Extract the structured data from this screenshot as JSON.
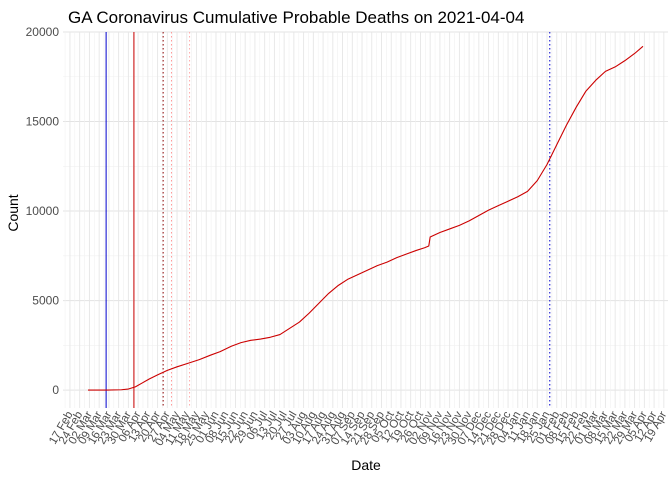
{
  "chart_data": {
    "type": "line",
    "title": "GA Coronavirus Cumulative Probable Deaths on 2021-04-04",
    "xlabel": "Date",
    "ylabel": "Count",
    "xlim": [
      "2020-02-12",
      "2021-04-22"
    ],
    "ylim": [
      -1000,
      20000
    ],
    "grid": true,
    "legend": "none",
    "y_ticks": [
      0,
      5000,
      10000,
      15000,
      20000
    ],
    "x_ticks": [
      "17 Feb",
      "24 Feb",
      "02 Mar",
      "09 Mar",
      "16 Mar",
      "23 Mar",
      "30 Mar",
      "06 Apr",
      "13 Apr",
      "20 Apr",
      "27 Apr",
      "04 May",
      "11 May",
      "18 May",
      "25 May",
      "01 Jun",
      "08 Jun",
      "15 Jun",
      "22 Jun",
      "29 Jun",
      "06 Jul",
      "13 Jul",
      "20 Jul",
      "27 Jul",
      "03 Aug",
      "10 Aug",
      "17 Aug",
      "24 Aug",
      "31 Aug",
      "07 Sep",
      "14 Sep",
      "21 Sep",
      "28 Sep",
      "05 Oct",
      "12 Oct",
      "19 Oct",
      "26 Oct",
      "02 Nov",
      "09 Nov",
      "16 Nov",
      "23 Nov",
      "30 Nov",
      "07 Dec",
      "14 Dec",
      "21 Dec",
      "28 Dec",
      "04 Jan",
      "11 Jan",
      "18 Jan",
      "25 Jan",
      "01 Feb",
      "08 Feb",
      "15 Feb",
      "22 Feb",
      "01 Mar",
      "08 Mar",
      "15 Mar",
      "22 Mar",
      "29 Mar",
      "05 Apr",
      "12 Apr",
      "19 Apr"
    ],
    "x_tick_dates": [
      "2020-02-17",
      "2020-02-24",
      "2020-03-02",
      "2020-03-09",
      "2020-03-16",
      "2020-03-23",
      "2020-03-30",
      "2020-04-06",
      "2020-04-13",
      "2020-04-20",
      "2020-04-27",
      "2020-05-04",
      "2020-05-11",
      "2020-05-18",
      "2020-05-25",
      "2020-06-01",
      "2020-06-08",
      "2020-06-15",
      "2020-06-22",
      "2020-06-29",
      "2020-07-06",
      "2020-07-13",
      "2020-07-20",
      "2020-07-27",
      "2020-08-03",
      "2020-08-10",
      "2020-08-17",
      "2020-08-24",
      "2020-08-31",
      "2020-09-07",
      "2020-09-14",
      "2020-09-21",
      "2020-09-28",
      "2020-10-05",
      "2020-10-12",
      "2020-10-19",
      "2020-10-26",
      "2020-11-02",
      "2020-11-09",
      "2020-11-16",
      "2020-11-23",
      "2020-11-30",
      "2020-12-07",
      "2020-12-14",
      "2020-12-21",
      "2020-12-28",
      "2021-01-04",
      "2021-01-11",
      "2021-01-18",
      "2021-01-25",
      "2021-02-01",
      "2021-02-08",
      "2021-02-15",
      "2021-02-22",
      "2021-03-01",
      "2021-03-08",
      "2021-03-15",
      "2021-03-22",
      "2021-03-29",
      "2021-04-05",
      "2021-04-12",
      "2021-04-19"
    ],
    "series": [
      {
        "color": "#cc0000",
        "points": [
          [
            "2020-03-01",
            0
          ],
          [
            "2020-03-15",
            2
          ],
          [
            "2020-03-25",
            20
          ],
          [
            "2020-03-30",
            60
          ],
          [
            "2020-04-04",
            180
          ],
          [
            "2020-04-09",
            400
          ],
          [
            "2020-04-14",
            620
          ],
          [
            "2020-04-20",
            850
          ],
          [
            "2020-04-27",
            1100
          ],
          [
            "2020-05-04",
            1300
          ],
          [
            "2020-05-12",
            1500
          ],
          [
            "2020-05-20",
            1700
          ],
          [
            "2020-05-28",
            1950
          ],
          [
            "2020-06-04",
            2150
          ],
          [
            "2020-06-12",
            2450
          ],
          [
            "2020-06-19",
            2650
          ],
          [
            "2020-06-26",
            2780
          ],
          [
            "2020-07-03",
            2850
          ],
          [
            "2020-07-10",
            2950
          ],
          [
            "2020-07-17",
            3100
          ],
          [
            "2020-07-24",
            3450
          ],
          [
            "2020-07-31",
            3800
          ],
          [
            "2020-08-07",
            4300
          ],
          [
            "2020-08-14",
            4850
          ],
          [
            "2020-08-21",
            5400
          ],
          [
            "2020-08-28",
            5850
          ],
          [
            "2020-09-04",
            6200
          ],
          [
            "2020-09-11",
            6450
          ],
          [
            "2020-09-18",
            6700
          ],
          [
            "2020-09-25",
            6950
          ],
          [
            "2020-10-02",
            7150
          ],
          [
            "2020-10-09",
            7400
          ],
          [
            "2020-10-16",
            7600
          ],
          [
            "2020-10-23",
            7800
          ],
          [
            "2020-10-29",
            7950
          ],
          [
            "2020-11-01",
            8050
          ],
          [
            "2020-11-02",
            8550
          ],
          [
            "2020-11-09",
            8800
          ],
          [
            "2020-11-16",
            9000
          ],
          [
            "2020-11-23",
            9200
          ],
          [
            "2020-11-30",
            9450
          ],
          [
            "2020-12-07",
            9750
          ],
          [
            "2020-12-14",
            10050
          ],
          [
            "2020-12-21",
            10300
          ],
          [
            "2020-12-28",
            10550
          ],
          [
            "2021-01-04",
            10800
          ],
          [
            "2021-01-11",
            11100
          ],
          [
            "2021-01-18",
            11700
          ],
          [
            "2021-01-25",
            12600
          ],
          [
            "2021-02-01",
            13700
          ],
          [
            "2021-02-08",
            14800
          ],
          [
            "2021-02-15",
            15800
          ],
          [
            "2021-02-22",
            16700
          ],
          [
            "2021-03-01",
            17300
          ],
          [
            "2021-03-08",
            17800
          ],
          [
            "2021-03-15",
            18050
          ],
          [
            "2021-03-22",
            18400
          ],
          [
            "2021-03-29",
            18800
          ],
          [
            "2021-04-04",
            19200
          ]
        ]
      }
    ],
    "vertical_lines": [
      {
        "date": "2020-03-14",
        "color": "#0000cc",
        "style": "solid"
      },
      {
        "date": "2020-04-03",
        "color": "#cc0000",
        "style": "solid"
      },
      {
        "date": "2020-04-24",
        "color": "#8b0000",
        "style": "dotted"
      },
      {
        "date": "2020-04-30",
        "color": "#ff9999",
        "style": "dotted"
      },
      {
        "date": "2020-05-13",
        "color": "#ffaaaa",
        "style": "dotted"
      },
      {
        "date": "2021-01-27",
        "color": "#0000cc",
        "style": "dotted"
      }
    ]
  }
}
